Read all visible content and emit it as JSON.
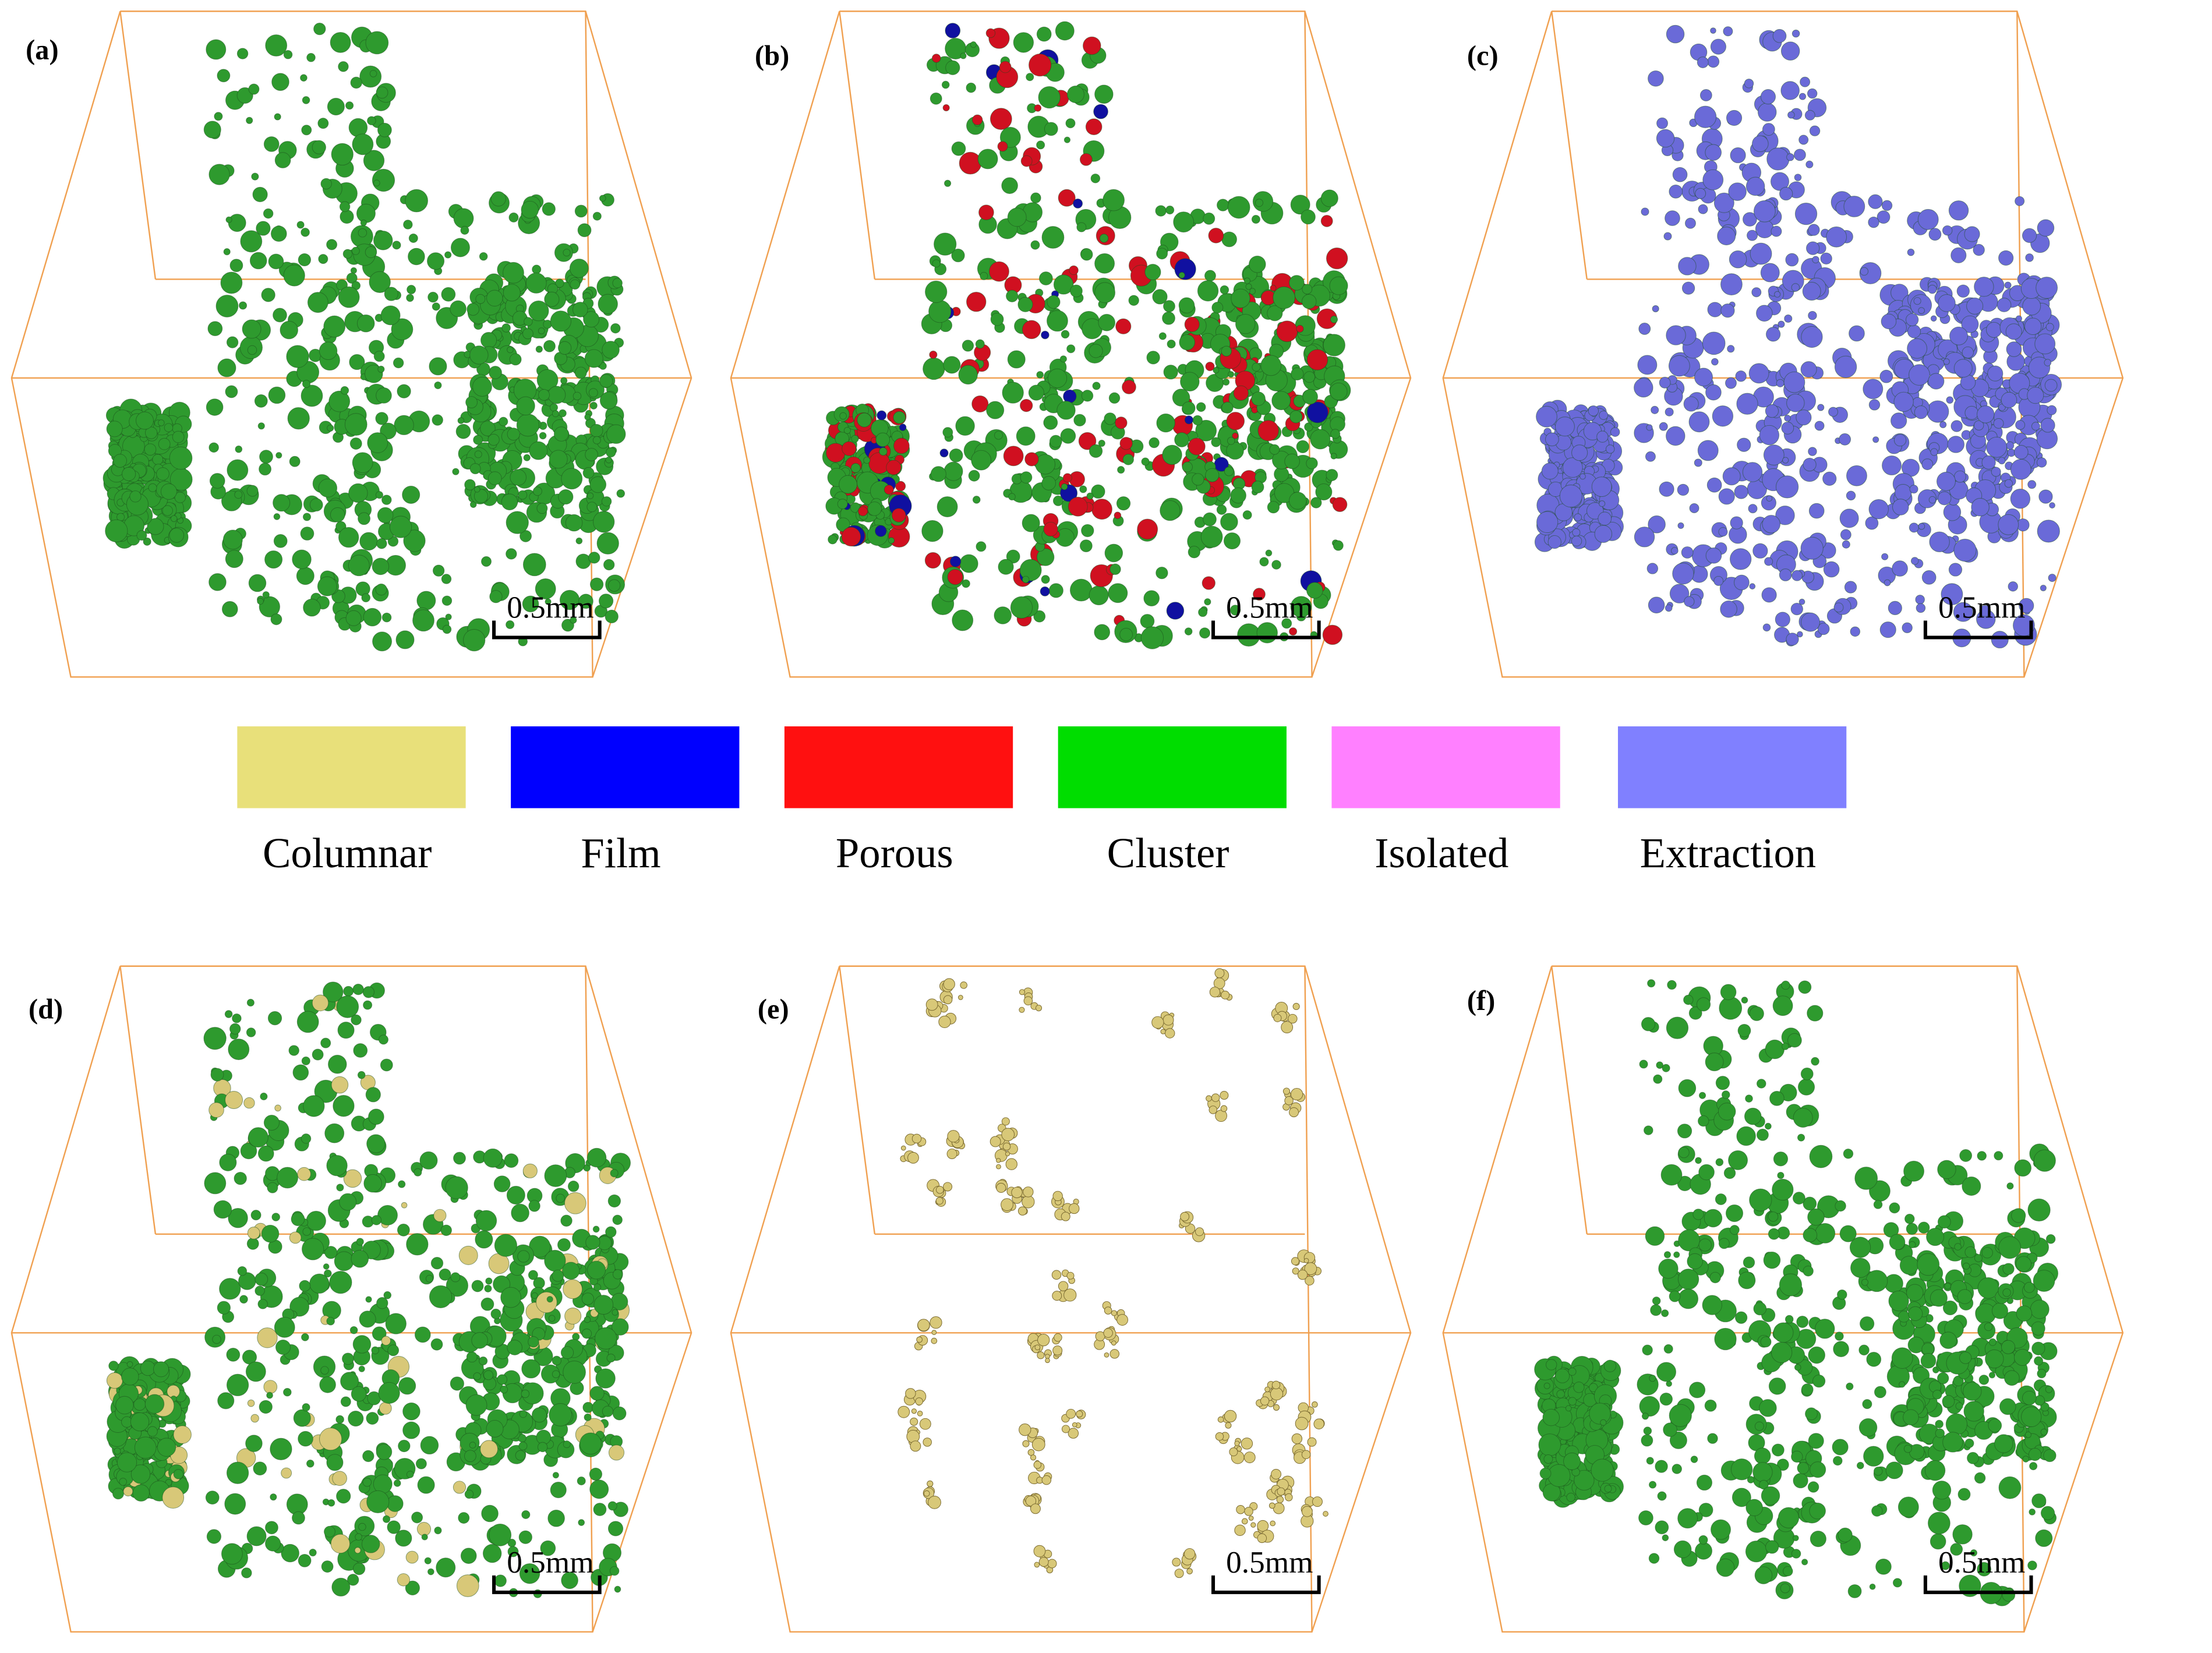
{
  "panels": [
    {
      "label": "(a)",
      "scale_bar": "0.5mm"
    },
    {
      "label": "(b)",
      "scale_bar": "0.5mm"
    },
    {
      "label": "(c)",
      "scale_bar": "0.5mm"
    },
    {
      "label": "(d)",
      "scale_bar": "0.5mm"
    },
    {
      "label": "(e)",
      "scale_bar": "0.5mm"
    },
    {
      "label": "(f)",
      "scale_bar": "0.5mm"
    }
  ],
  "legend": [
    {
      "name": "Columnar",
      "color": "#e8e07a"
    },
    {
      "name": "Film",
      "color": "#0000ff"
    },
    {
      "name": "Porous",
      "color": "#ff1010"
    },
    {
      "name": "Cluster",
      "color": "#00dd00"
    },
    {
      "name": "Isolated",
      "color": "#ff80ff"
    },
    {
      "name": "Extraction",
      "color": "#8080ff"
    }
  ]
}
